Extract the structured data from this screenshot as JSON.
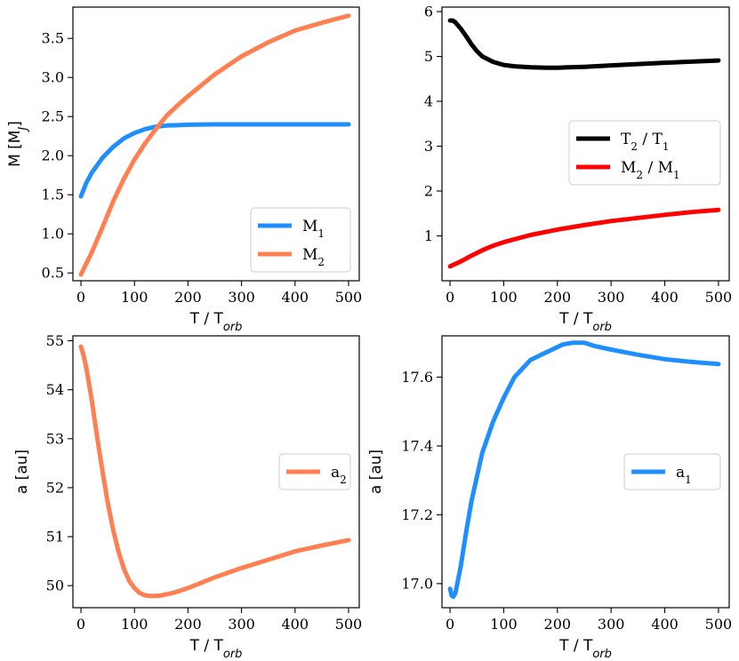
{
  "chart_data": [
    {
      "type": "line",
      "id": "p1",
      "xlabel": "T / T",
      "xlabel_sub": "orb",
      "ylabel": "M [M",
      "ylabel_sub": "J",
      "ylabel_end": "]",
      "xlim": [
        -15,
        520
      ],
      "ylim": [
        0.4,
        3.9
      ],
      "xticks": [
        "0",
        "100",
        "200",
        "300",
        "400",
        "500"
      ],
      "xtick_values": [
        0,
        100,
        200,
        300,
        400,
        500
      ],
      "yticks": [
        "0.5",
        "1.0",
        "1.5",
        "2.0",
        "2.5",
        "3.0",
        "3.5"
      ],
      "ytick_values": [
        0.5,
        1.0,
        1.5,
        2.0,
        2.5,
        3.0,
        3.5
      ],
      "legend_position": "lower-right",
      "series": [
        {
          "name": "M",
          "sub": "1",
          "color": "#1f8fff",
          "x": [
            0,
            10,
            20,
            40,
            60,
            80,
            100,
            120,
            140,
            160,
            180,
            200,
            250,
            300,
            400,
            500
          ],
          "y": [
            1.48,
            1.65,
            1.78,
            1.97,
            2.11,
            2.22,
            2.29,
            2.34,
            2.37,
            2.385,
            2.39,
            2.395,
            2.4,
            2.4,
            2.4,
            2.4
          ]
        },
        {
          "name": "M",
          "sub": "2",
          "color": "#ff7f50",
          "x": [
            0,
            20,
            40,
            60,
            80,
            100,
            120,
            140,
            160,
            180,
            200,
            250,
            300,
            350,
            400,
            450,
            500
          ],
          "y": [
            0.48,
            0.76,
            1.08,
            1.41,
            1.7,
            1.95,
            2.16,
            2.34,
            2.51,
            2.64,
            2.76,
            3.04,
            3.27,
            3.45,
            3.6,
            3.7,
            3.79
          ]
        }
      ]
    },
    {
      "type": "line",
      "id": "p2",
      "xlabel": "T / T",
      "xlabel_sub": "orb",
      "ylabel": "",
      "xlim": [
        -15,
        520
      ],
      "ylim": [
        0.0,
        6.1
      ],
      "xticks": [
        "0",
        "100",
        "200",
        "300",
        "400",
        "500"
      ],
      "xtick_values": [
        0,
        100,
        200,
        300,
        400,
        500
      ],
      "yticks": [
        "1",
        "2",
        "3",
        "4",
        "5",
        "6"
      ],
      "ytick_values": [
        1,
        2,
        3,
        4,
        5,
        6
      ],
      "legend_position": "center-right",
      "series": [
        {
          "name": "T",
          "sub": "2",
          "suffix": " / T",
          "sub2": "1",
          "color": "#000000",
          "x": [
            0,
            5,
            10,
            20,
            30,
            40,
            50,
            60,
            80,
            100,
            120,
            150,
            180,
            200,
            250,
            300,
            400,
            500
          ],
          "y": [
            5.8,
            5.8,
            5.76,
            5.62,
            5.45,
            5.27,
            5.12,
            5.0,
            4.88,
            4.81,
            4.78,
            4.76,
            4.75,
            4.75,
            4.77,
            4.8,
            4.86,
            4.91
          ]
        },
        {
          "name": "M",
          "sub": "2",
          "suffix": " / M",
          "sub2": "1",
          "color": "#ff0000",
          "x": [
            0,
            20,
            40,
            60,
            80,
            100,
            150,
            200,
            250,
            300,
            350,
            400,
            450,
            500
          ],
          "y": [
            0.32,
            0.43,
            0.56,
            0.68,
            0.78,
            0.86,
            1.02,
            1.14,
            1.24,
            1.33,
            1.4,
            1.47,
            1.53,
            1.58
          ]
        }
      ]
    },
    {
      "type": "line",
      "id": "p3",
      "xlabel": "T / T",
      "xlabel_sub": "orb",
      "ylabel": "a [au]",
      "xlim": [
        -15,
        520
      ],
      "ylim": [
        49.55,
        55.1
      ],
      "xticks": [
        "0",
        "100",
        "200",
        "300",
        "400",
        "500"
      ],
      "xtick_values": [
        0,
        100,
        200,
        300,
        400,
        500
      ],
      "yticks": [
        "50",
        "51",
        "52",
        "53",
        "54",
        "55"
      ],
      "ytick_values": [
        50,
        51,
        52,
        53,
        54,
        55
      ],
      "legend_position": "center-right",
      "series": [
        {
          "name": "a",
          "sub": "2",
          "color": "#ff7f50",
          "x": [
            0,
            5,
            10,
            20,
            30,
            40,
            50,
            60,
            70,
            80,
            90,
            100,
            110,
            120,
            130,
            140,
            150,
            175,
            200,
            250,
            300,
            350,
            400,
            450,
            500
          ],
          "y": [
            54.88,
            54.7,
            54.45,
            53.8,
            53.05,
            52.35,
            51.7,
            51.15,
            50.7,
            50.35,
            50.1,
            49.95,
            49.85,
            49.8,
            49.79,
            49.79,
            49.8,
            49.86,
            49.95,
            50.17,
            50.36,
            50.53,
            50.7,
            50.82,
            50.93
          ]
        }
      ]
    },
    {
      "type": "line",
      "id": "p4",
      "xlabel": "T / T",
      "xlabel_sub": "orb",
      "ylabel": "a [au]",
      "xlim": [
        -15,
        520
      ],
      "ylim": [
        16.93,
        17.72
      ],
      "xticks": [
        "0",
        "100",
        "200",
        "300",
        "400",
        "500"
      ],
      "xtick_values": [
        0,
        100,
        200,
        300,
        400,
        500
      ],
      "yticks": [
        "17.0",
        "17.2",
        "17.4",
        "17.6"
      ],
      "ytick_values": [
        17.0,
        17.2,
        17.4,
        17.6
      ],
      "legend_position": "center-right",
      "series": [
        {
          "name": "a",
          "sub": "1",
          "color": "#1f8fff",
          "x": [
            0,
            3,
            6,
            10,
            20,
            30,
            40,
            60,
            80,
            100,
            120,
            150,
            170,
            190,
            210,
            230,
            250,
            270,
            300,
            350,
            400,
            450,
            500
          ],
          "y": [
            16.985,
            16.965,
            16.962,
            16.972,
            17.05,
            17.15,
            17.24,
            17.38,
            17.47,
            17.54,
            17.6,
            17.65,
            17.665,
            17.68,
            17.695,
            17.7,
            17.7,
            17.69,
            17.68,
            17.665,
            17.652,
            17.644,
            17.638
          ]
        }
      ]
    }
  ]
}
